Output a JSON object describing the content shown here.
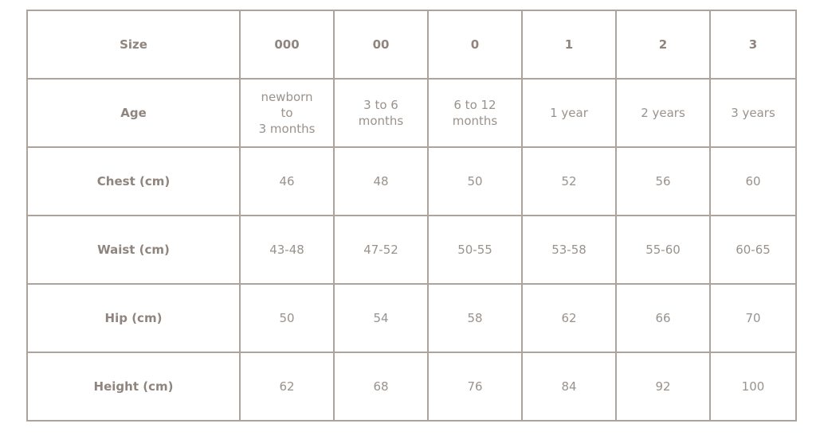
{
  "header": {
    "label": "Size",
    "columns": [
      "000",
      "00",
      "0",
      "1",
      "2",
      "3"
    ]
  },
  "rows": [
    {
      "label": "Age",
      "values": [
        "newborn\nto\n3 months",
        "3 to 6\nmonths",
        "6 to 12\nmonths",
        "1 year",
        "2 years",
        "3 years"
      ]
    },
    {
      "label": "Chest (cm)",
      "values": [
        "46",
        "48",
        "50",
        "52",
        "56",
        "60"
      ]
    },
    {
      "label": "Waist (cm)",
      "values": [
        "43-48",
        "47-52",
        "50-55",
        "53-58",
        "55-60",
        "60-65"
      ]
    },
    {
      "label": "Hip (cm)",
      "values": [
        "50",
        "54",
        "58",
        "62",
        "66",
        "70"
      ]
    },
    {
      "label": "Height (cm)",
      "values": [
        "62",
        "68",
        "76",
        "84",
        "92",
        "100"
      ]
    }
  ]
}
